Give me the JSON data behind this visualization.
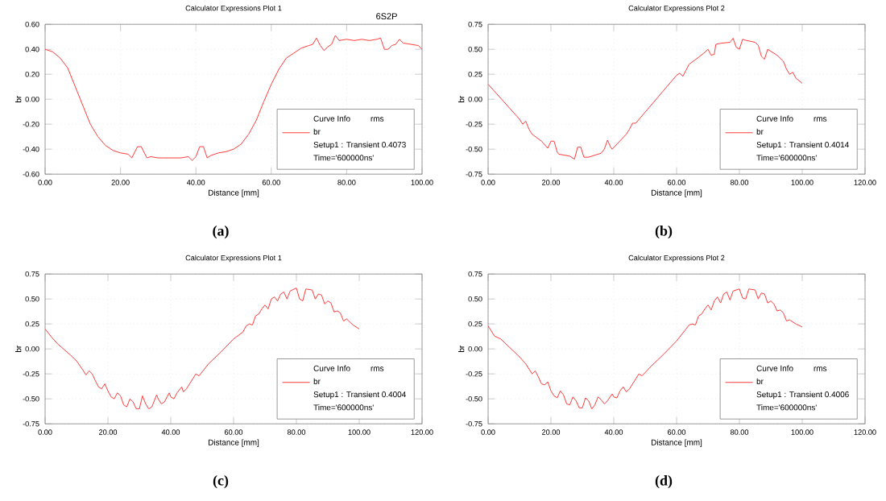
{
  "chart_data": [
    {
      "type": "line",
      "title": "Calculator Expressions Plot 1",
      "xlabel": "Distance [mm]",
      "ylabel": "br",
      "legend": "bottom right",
      "legend_title": "Curve Info",
      "grid": true,
      "annotations": [
        "rms",
        "Setup1 : Transient 0.4073",
        "Time='600000ns'",
        "(a)",
        "6S2P"
      ],
      "xlim": [
        0,
        100
      ],
      "ylim": [
        -0.6,
        0.6
      ],
      "xticks": [
        {
          "value": 0,
          "label": "0.00"
        },
        {
          "value": 20,
          "label": "20.00"
        },
        {
          "value": 40,
          "label": "40.00"
        },
        {
          "value": 60,
          "label": "60.00"
        },
        {
          "value": 80,
          "label": "80.00"
        },
        {
          "value": 100,
          "label": "100.00"
        }
      ],
      "yticks": [
        {
          "value": -0.6,
          "label": "-0.60"
        },
        {
          "value": -0.4,
          "label": "-0.40"
        },
        {
          "value": -0.2,
          "label": "-0.20"
        },
        {
          "value": 0,
          "label": "0.00"
        },
        {
          "value": 0.2,
          "label": "0.20"
        },
        {
          "value": 0.4,
          "label": "0.40"
        },
        {
          "value": 0.6,
          "label": "0.60"
        }
      ],
      "series": [
        {
          "name": "br",
          "color": "#ff3b3b",
          "x": [
            0,
            2,
            4,
            6,
            8,
            10,
            12,
            14,
            16,
            18,
            20,
            22,
            23,
            24.5,
            25.5,
            27,
            28,
            30,
            32,
            34,
            36,
            38,
            39,
            40,
            41,
            42,
            43,
            44,
            46,
            48,
            50,
            52,
            54,
            56,
            58,
            60,
            62,
            64,
            66,
            68,
            70,
            71,
            72,
            73,
            74,
            75,
            76,
            77,
            78,
            80,
            82,
            84,
            86,
            88,
            89,
            90,
            91,
            92,
            93,
            94,
            95,
            97,
            99,
            100
          ],
          "values": [
            0.4,
            0.38,
            0.33,
            0.25,
            0.1,
            -0.05,
            -0.2,
            -0.3,
            -0.37,
            -0.41,
            -0.43,
            -0.44,
            -0.47,
            -0.38,
            -0.38,
            -0.47,
            -0.46,
            -0.47,
            -0.47,
            -0.47,
            -0.47,
            -0.46,
            -0.49,
            -0.46,
            -0.38,
            -0.38,
            -0.47,
            -0.45,
            -0.43,
            -0.42,
            -0.4,
            -0.36,
            -0.28,
            -0.17,
            -0.02,
            0.12,
            0.24,
            0.33,
            0.37,
            0.41,
            0.43,
            0.44,
            0.49,
            0.43,
            0.39,
            0.42,
            0.44,
            0.51,
            0.47,
            0.48,
            0.47,
            0.48,
            0.47,
            0.48,
            0.49,
            0.4,
            0.4,
            0.43,
            0.44,
            0.48,
            0.45,
            0.44,
            0.43,
            0.4
          ]
        }
      ]
    },
    {
      "type": "line",
      "title": "Calculator Expressions Plot 2",
      "xlabel": "Distance [mm]",
      "ylabel": "br",
      "legend": "bottom right",
      "legend_title": "Curve Info",
      "grid": true,
      "annotations": [
        "rms",
        "Setup1 : Transient 0.4014",
        "Time='600000ns'",
        "(b)"
      ],
      "xlim": [
        0,
        120
      ],
      "ylim": [
        -0.75,
        0.75
      ],
      "xticks": [
        {
          "value": 0,
          "label": "0.00"
        },
        {
          "value": 20,
          "label": "20.00"
        },
        {
          "value": 40,
          "label": "40.00"
        },
        {
          "value": 60,
          "label": "60.00"
        },
        {
          "value": 80,
          "label": "80.00"
        },
        {
          "value": 100,
          "label": "100.00"
        },
        {
          "value": 120,
          "label": "120.00"
        }
      ],
      "yticks": [
        {
          "value": -0.75,
          "label": "-0.75"
        },
        {
          "value": -0.5,
          "label": "-0.50"
        },
        {
          "value": -0.25,
          "label": "-0.25"
        },
        {
          "value": 0,
          "label": "0.00"
        },
        {
          "value": 0.25,
          "label": "0.25"
        },
        {
          "value": 0.5,
          "label": "0.50"
        },
        {
          "value": 0.75,
          "label": "0.75"
        }
      ],
      "series": [
        {
          "name": "br",
          "color": "#ff3b3b",
          "x": [
            0,
            10,
            11,
            12,
            13,
            14,
            17,
            19,
            20,
            21,
            22,
            22.5,
            26,
            27.5,
            28.5,
            29.5,
            30.5,
            32,
            36,
            37,
            38,
            39,
            39.5,
            44,
            45,
            46,
            47,
            60,
            61,
            62,
            63,
            64,
            67,
            69,
            70,
            71,
            72,
            72.5,
            74,
            77,
            78,
            79,
            80,
            81,
            82,
            85,
            86,
            87,
            88,
            89,
            92,
            94,
            95,
            96,
            97,
            98,
            100
          ],
          "values": [
            0.15,
            -0.2,
            -0.25,
            -0.22,
            -0.3,
            -0.35,
            -0.42,
            -0.49,
            -0.42,
            -0.42,
            -0.53,
            -0.55,
            -0.57,
            -0.6,
            -0.48,
            -0.48,
            -0.58,
            -0.58,
            -0.54,
            -0.5,
            -0.41,
            -0.48,
            -0.5,
            -0.35,
            -0.3,
            -0.24,
            -0.24,
            0.24,
            0.26,
            0.23,
            0.29,
            0.35,
            0.42,
            0.47,
            0.5,
            0.44,
            0.45,
            0.55,
            0.56,
            0.57,
            0.61,
            0.52,
            0.5,
            0.6,
            0.59,
            0.57,
            0.54,
            0.43,
            0.4,
            0.5,
            0.44,
            0.38,
            0.3,
            0.25,
            0.27,
            0.21,
            0.16
          ]
        }
      ]
    },
    {
      "type": "line",
      "title": "Calculator Expressions Plot 1",
      "xlabel": "Distance [mm]",
      "ylabel": "br",
      "legend": "bottom right",
      "legend_title": "Curve Info",
      "grid": true,
      "annotations": [
        "rms",
        "Setup1 : Transient 0.4004",
        "Time='600000ns'",
        "(c)"
      ],
      "xlim": [
        0,
        120
      ],
      "ylim": [
        -0.75,
        0.75
      ],
      "xticks": [
        {
          "value": 0,
          "label": "0.00"
        },
        {
          "value": 20,
          "label": "20.00"
        },
        {
          "value": 40,
          "label": "40.00"
        },
        {
          "value": 60,
          "label": "60.00"
        },
        {
          "value": 80,
          "label": "80.00"
        },
        {
          "value": 100,
          "label": "100.00"
        },
        {
          "value": 120,
          "label": "120.00"
        }
      ],
      "yticks": [
        {
          "value": -0.75,
          "label": "-0.75"
        },
        {
          "value": -0.5,
          "label": "-0.50"
        },
        {
          "value": -0.25,
          "label": "-0.25"
        },
        {
          "value": 0,
          "label": "0.00"
        },
        {
          "value": 0.25,
          "label": "0.25"
        },
        {
          "value": 0.5,
          "label": "0.50"
        },
        {
          "value": 0.75,
          "label": "0.75"
        }
      ],
      "series": [
        {
          "name": "br",
          "color": "#ff3b3b",
          "x": [
            0,
            2,
            4,
            8,
            10,
            12,
            13,
            14,
            15,
            16,
            17,
            18,
            19,
            20,
            21,
            22,
            23,
            24,
            25,
            26,
            27,
            28,
            29,
            30,
            31,
            32,
            33,
            34,
            35.5,
            36,
            37,
            38,
            39.5,
            40,
            41,
            42,
            43.5,
            44,
            45,
            47,
            48,
            49,
            52,
            56,
            60,
            63,
            64,
            65,
            66,
            67,
            68,
            69,
            70,
            71,
            72,
            73,
            74,
            75,
            76,
            77,
            78,
            80,
            81,
            82,
            83,
            85,
            86,
            87,
            88,
            89,
            90,
            91,
            92,
            93,
            94,
            95,
            96,
            98,
            100
          ],
          "values": [
            0.2,
            0.12,
            0.05,
            -0.06,
            -0.12,
            -0.21,
            -0.26,
            -0.22,
            -0.25,
            -0.32,
            -0.38,
            -0.4,
            -0.35,
            -0.42,
            -0.48,
            -0.5,
            -0.44,
            -0.47,
            -0.56,
            -0.58,
            -0.5,
            -0.53,
            -0.6,
            -0.6,
            -0.47,
            -0.55,
            -0.6,
            -0.58,
            -0.46,
            -0.5,
            -0.55,
            -0.53,
            -0.44,
            -0.48,
            -0.5,
            -0.44,
            -0.38,
            -0.43,
            -0.4,
            -0.3,
            -0.25,
            -0.27,
            -0.15,
            -0.03,
            0.1,
            0.17,
            0.23,
            0.25,
            0.24,
            0.33,
            0.35,
            0.4,
            0.44,
            0.4,
            0.5,
            0.52,
            0.48,
            0.55,
            0.57,
            0.5,
            0.58,
            0.61,
            0.5,
            0.48,
            0.6,
            0.59,
            0.5,
            0.55,
            0.54,
            0.45,
            0.48,
            0.46,
            0.37,
            0.38,
            0.36,
            0.28,
            0.3,
            0.24,
            0.2
          ]
        }
      ]
    },
    {
      "type": "line",
      "title": "Calculator Expressions Plot 2",
      "xlabel": "Distance [mm]",
      "ylabel": "br",
      "legend": "bottom right",
      "legend_title": "Curve Info",
      "grid": true,
      "annotations": [
        "rms",
        "Setup1 : Transient 0.4006",
        "Time='600000ns'",
        "(d)"
      ],
      "xlim": [
        0,
        120
      ],
      "ylim": [
        -0.75,
        0.75
      ],
      "xticks": [
        {
          "value": 0,
          "label": "0.00"
        },
        {
          "value": 20,
          "label": "20.00"
        },
        {
          "value": 40,
          "label": "40.00"
        },
        {
          "value": 60,
          "label": "60.00"
        },
        {
          "value": 80,
          "label": "80.00"
        },
        {
          "value": 100,
          "label": "100.00"
        },
        {
          "value": 120,
          "label": "120.00"
        }
      ],
      "yticks": [
        {
          "value": -0.75,
          "label": "-0.75"
        },
        {
          "value": -0.5,
          "label": "-0.50"
        },
        {
          "value": -0.25,
          "label": "-0.25"
        },
        {
          "value": 0,
          "label": "0.00"
        },
        {
          "value": 0.25,
          "label": "0.25"
        },
        {
          "value": 0.5,
          "label": "0.50"
        },
        {
          "value": 0.75,
          "label": "0.75"
        }
      ],
      "series": [
        {
          "name": "br",
          "color": "#ff3b3b",
          "x": [
            0,
            2,
            4,
            8,
            10,
            12,
            14,
            15,
            16,
            17,
            18,
            19,
            20,
            21,
            22,
            23,
            24,
            25,
            26,
            27,
            28,
            29,
            30,
            31,
            32,
            33,
            34,
            35,
            36,
            37,
            38,
            39.5,
            40,
            41,
            42,
            43,
            44,
            45,
            47,
            48,
            49,
            52,
            56,
            60,
            63,
            64,
            65,
            66,
            67,
            68,
            69,
            70,
            71,
            72,
            73,
            74,
            75,
            76,
            77,
            78,
            80,
            81,
            82,
            83,
            85,
            86,
            87,
            88,
            89,
            90,
            91,
            92,
            93,
            94,
            95,
            96,
            98,
            100
          ],
          "values": [
            0.23,
            0.13,
            0.1,
            -0.02,
            -0.08,
            -0.15,
            -0.25,
            -0.22,
            -0.28,
            -0.35,
            -0.36,
            -0.33,
            -0.42,
            -0.47,
            -0.49,
            -0.42,
            -0.46,
            -0.55,
            -0.56,
            -0.48,
            -0.52,
            -0.59,
            -0.59,
            -0.49,
            -0.52,
            -0.6,
            -0.56,
            -0.48,
            -0.51,
            -0.55,
            -0.52,
            -0.45,
            -0.48,
            -0.49,
            -0.42,
            -0.38,
            -0.43,
            -0.4,
            -0.3,
            -0.25,
            -0.27,
            -0.17,
            -0.05,
            0.08,
            0.2,
            0.24,
            0.25,
            0.24,
            0.33,
            0.35,
            0.4,
            0.44,
            0.39,
            0.48,
            0.52,
            0.46,
            0.55,
            0.57,
            0.49,
            0.58,
            0.6,
            0.51,
            0.5,
            0.6,
            0.59,
            0.5,
            0.56,
            0.55,
            0.46,
            0.48,
            0.45,
            0.38,
            0.39,
            0.36,
            0.28,
            0.29,
            0.25,
            0.22
          ]
        }
      ]
    }
  ]
}
